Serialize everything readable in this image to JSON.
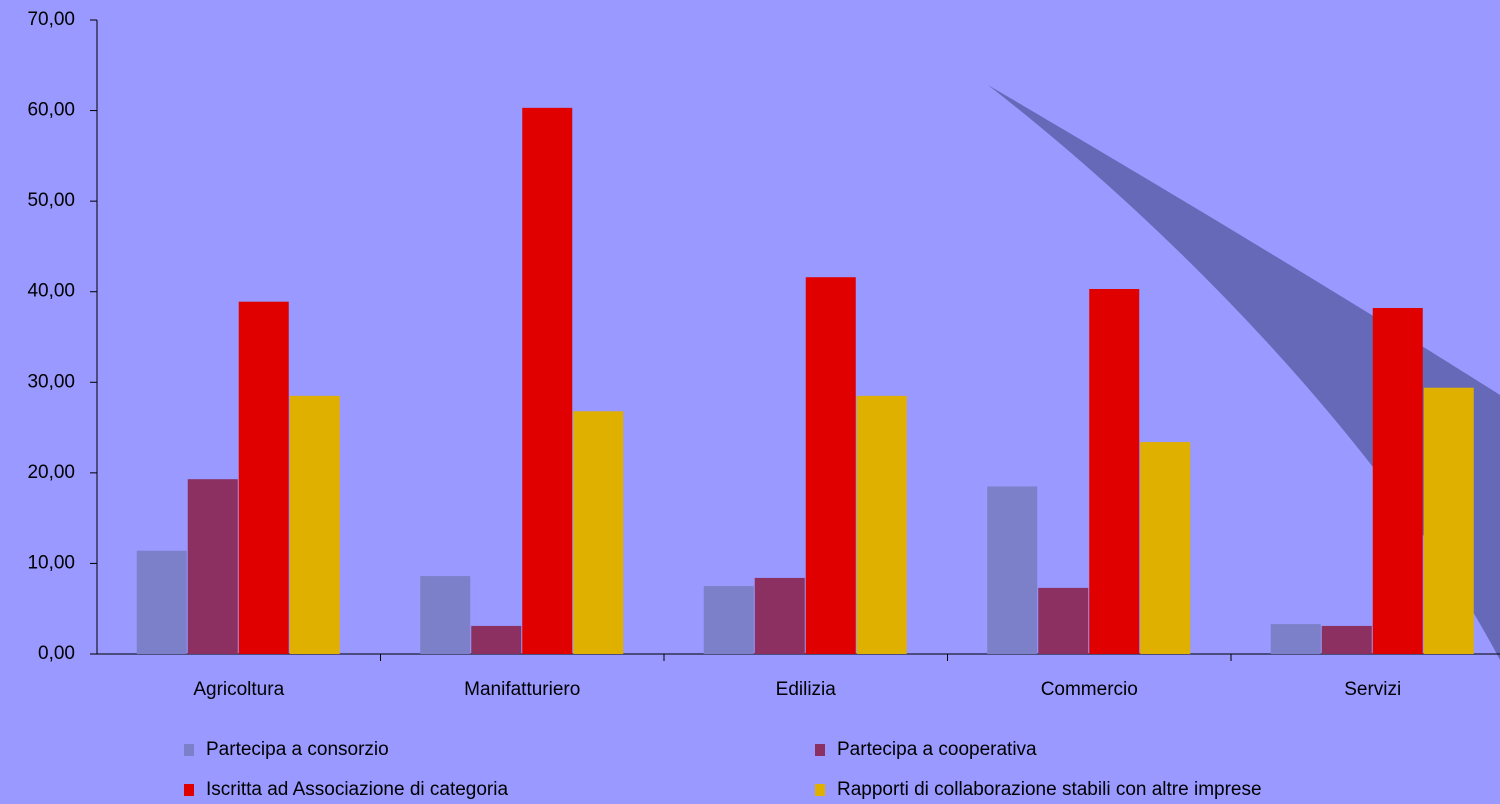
{
  "chart_data": {
    "type": "bar",
    "categories": [
      "Agricoltura",
      "Manifatturiero",
      "Edilizia",
      "Commercio",
      "Servizi"
    ],
    "series": [
      {
        "name": "Partecipa a consorzio",
        "color": "#7b80c8",
        "values": [
          11.4,
          8.6,
          7.5,
          18.5,
          3.3
        ]
      },
      {
        "name": "Partecipa a cooperativa",
        "color": "#8b3060",
        "values": [
          19.3,
          3.1,
          8.4,
          7.3,
          3.1
        ]
      },
      {
        "name": "Iscritta ad Associazione di categoria",
        "color": "#e00000",
        "values": [
          38.9,
          60.3,
          41.6,
          40.3,
          38.2
        ]
      },
      {
        "name": "Rapporti di collaborazione stabili con altre imprese",
        "color": "#e0b000",
        "values": [
          28.5,
          26.8,
          28.5,
          23.4,
          29.4
        ]
      }
    ],
    "ylim": [
      0,
      70
    ],
    "yticks": [
      {
        "value": 0,
        "label": "0,00"
      },
      {
        "value": 10,
        "label": "10,00"
      },
      {
        "value": 20,
        "label": "20,00"
      },
      {
        "value": 30,
        "label": "30,00"
      },
      {
        "value": 40,
        "label": "40,00"
      },
      {
        "value": 50,
        "label": "50,00"
      },
      {
        "value": 60,
        "label": "60,00"
      },
      {
        "value": 70,
        "label": "70,00"
      }
    ]
  }
}
